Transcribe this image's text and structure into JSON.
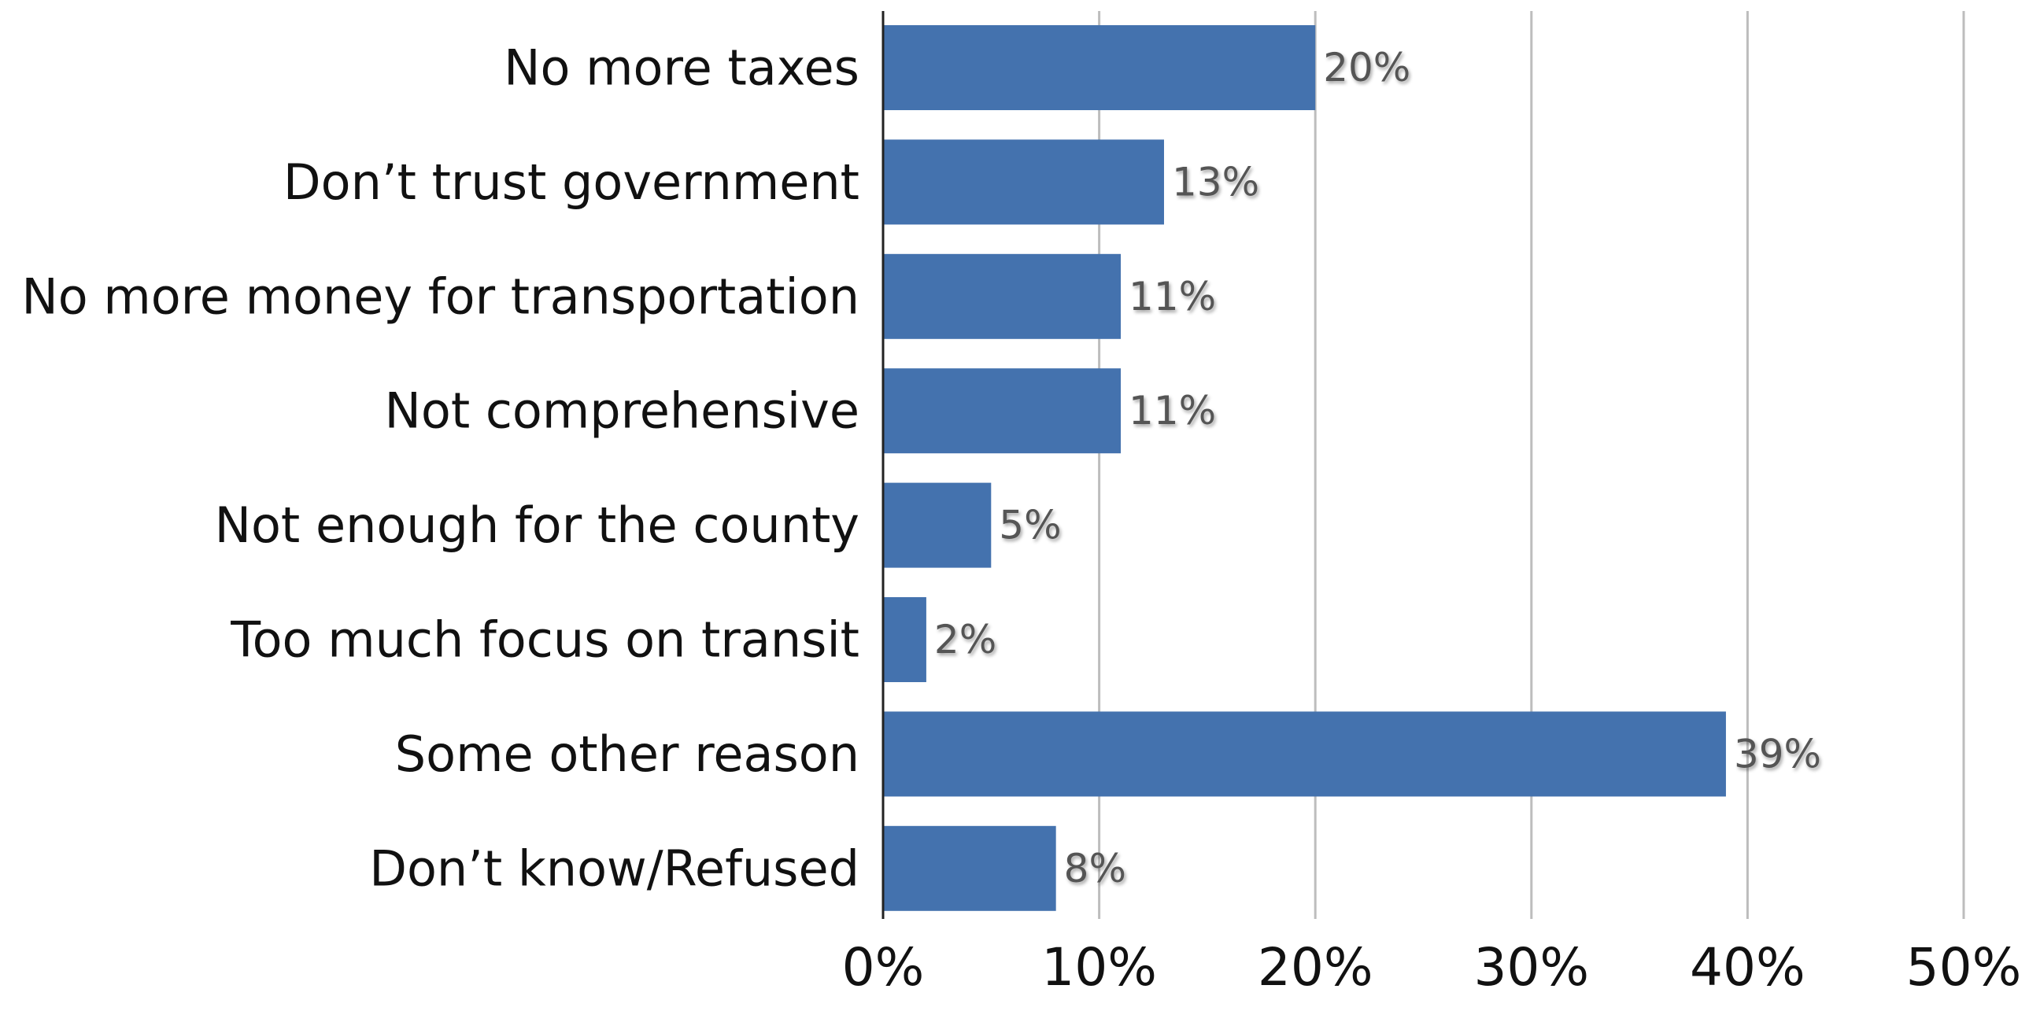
{
  "chart_data": {
    "type": "bar",
    "orientation": "horizontal",
    "categories": [
      "No more taxes",
      "Don’t trust government",
      "No more money for transportation",
      "Not comprehensive",
      "Not enough for the county",
      "Too much focus on transit",
      "Some other reason",
      "Don’t know/Refused"
    ],
    "values": [
      20,
      13,
      11,
      11,
      5,
      2,
      39,
      8
    ],
    "data_labels": [
      "20%",
      "13%",
      "11%",
      "11%",
      "5%",
      "2%",
      "39%",
      "8%"
    ],
    "xlim": [
      0,
      50
    ],
    "x_ticks": [
      0,
      10,
      20,
      30,
      40,
      50
    ],
    "x_tick_labels": [
      "0%",
      "10%",
      "20%",
      "30%",
      "40%",
      "50%"
    ],
    "grid": "vertical",
    "legend": "none",
    "title": "",
    "xlabel": "",
    "ylabel": "",
    "colors": {
      "bar": "#4472AE",
      "grid": "#BDBDBD",
      "axis": "#222222",
      "text": "#111111",
      "data_label": "#555555"
    }
  }
}
